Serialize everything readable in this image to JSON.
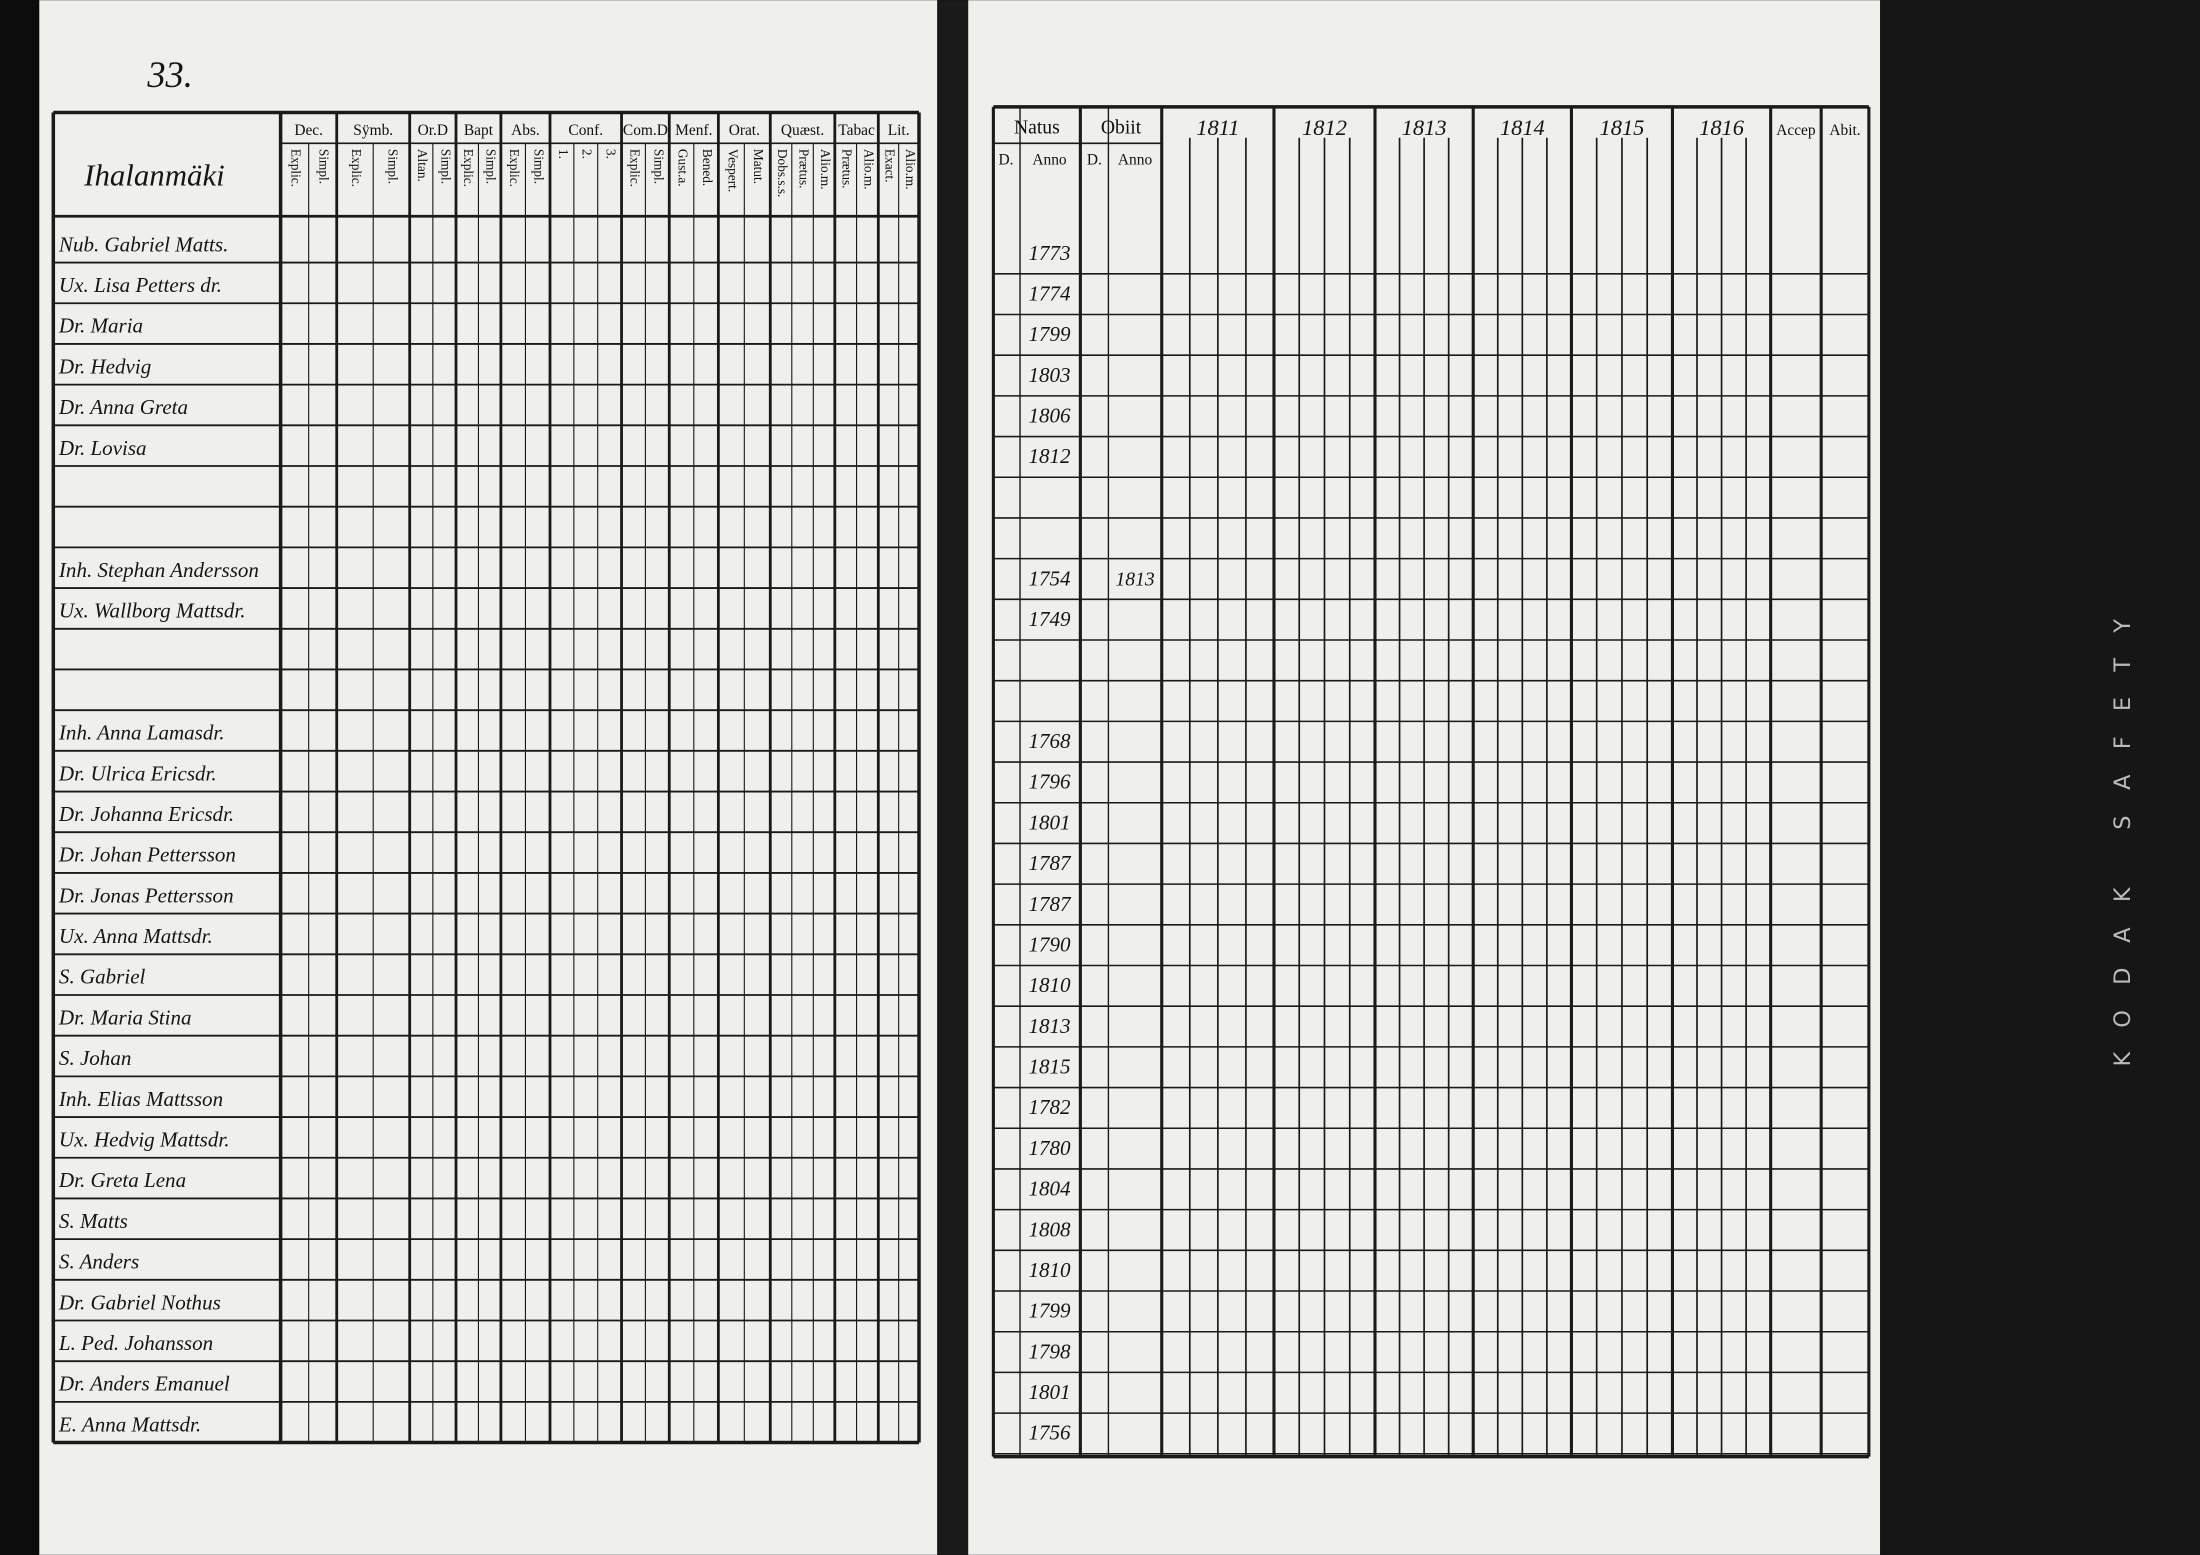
{
  "left_page": {
    "page_number": "33.",
    "farm": "Ihalanmäki",
    "columns": [
      {
        "head": "Dec.",
        "sub": [
          "Explic.",
          "Simpl."
        ]
      },
      {
        "head": "Sÿmb.",
        "sub": [
          "Explic.",
          "Simpl."
        ]
      },
      {
        "head": "Or.D",
        "sub": [
          "Altan.",
          "Simpl."
        ]
      },
      {
        "head": "Bapt",
        "sub": [
          "Explic.",
          "Simpl."
        ]
      },
      {
        "head": "Abs.",
        "sub": [
          "Explic.",
          "Simpl."
        ]
      },
      {
        "head": "Conf.",
        "sub": [
          "1.",
          "2.",
          "3."
        ]
      },
      {
        "head": "Com.D",
        "sub": [
          "Explic.",
          "Simpl."
        ]
      },
      {
        "head": "Menf.",
        "sub": [
          "Gust.a.",
          "Bened."
        ]
      },
      {
        "head": "Orat.",
        "sub": [
          "Vespert.",
          "Matut."
        ]
      },
      {
        "head": "Quæst.",
        "sub": [
          "Dobs.s.s.",
          "Prætus.",
          "Alio.m."
        ]
      },
      {
        "head": "Tabac",
        "sub": [
          "Prætus.",
          "Alio.m."
        ]
      },
      {
        "head": "Lit.",
        "sub": [
          "Exact.",
          "Alio.m."
        ]
      }
    ]
  },
  "right_page": {
    "natus": "Natus",
    "obiit": "Obiit",
    "day": "D.",
    "anno": "Anno",
    "years": [
      "1811",
      "1812",
      "1813",
      "1814",
      "1815",
      "1816"
    ],
    "accep": "Accep",
    "abit": "Abit."
  },
  "rows": [
    {
      "name": "Nub. Gabriel Matts.",
      "born": "1773"
    },
    {
      "name": "Ux. Lisa Petters dr.",
      "born": "1774"
    },
    {
      "name": "Dr. Maria",
      "born": "1799"
    },
    {
      "name": "Dr. Hedvig",
      "born": "1803"
    },
    {
      "name": "Dr. Anna Greta",
      "born": "1806"
    },
    {
      "name": "Dr. Lovisa",
      "born": "1812"
    },
    {},
    {},
    {
      "name": "Inh. Stephan Andersson",
      "born": "1754",
      "died": "1813"
    },
    {
      "name": "Ux. Wallborg Mattsdr.",
      "born": "1749"
    },
    {},
    {},
    {
      "name": "Inh. Anna Lamasdr.",
      "born": "1768"
    },
    {
      "name": "Dr. Ulrica Ericsdr.",
      "born": "1796"
    },
    {
      "name": "Dr. Johanna Ericsdr.",
      "born": "1801"
    },
    {
      "name": "Dr. Johan Pettersson",
      "born": "1787"
    },
    {
      "name": "Dr. Jonas Pettersson",
      "born": "1787"
    },
    {
      "name": "Ux. Anna Mattsdr.",
      "born": "1790"
    },
    {
      "name": "S. Gabriel",
      "born": "1810"
    },
    {
      "name": "Dr. Maria Stina",
      "born": "1813"
    },
    {
      "name": "S. Johan",
      "born": "1815"
    },
    {
      "name": "Inh. Elias Mattsson",
      "born": "1782"
    },
    {
      "name": "Ux. Hedvig Mattsdr.",
      "born": "1780"
    },
    {
      "name": "Dr. Greta Lena",
      "born": "1804"
    },
    {
      "name": "S. Matts",
      "born": "1808"
    },
    {
      "name": "S. Anders",
      "born": "1810"
    },
    {
      "name": "Dr. Gabriel Nothus",
      "born": "1799"
    },
    {
      "name": "L. Ped. Johansson",
      "born": "1798"
    },
    {
      "name": "Dr. Anders Emanuel",
      "born": "1801"
    },
    {
      "name": "E. Anna Mattsdr.",
      "born": "1756"
    }
  ],
  "margin_text": "KODAK SAFETY"
}
